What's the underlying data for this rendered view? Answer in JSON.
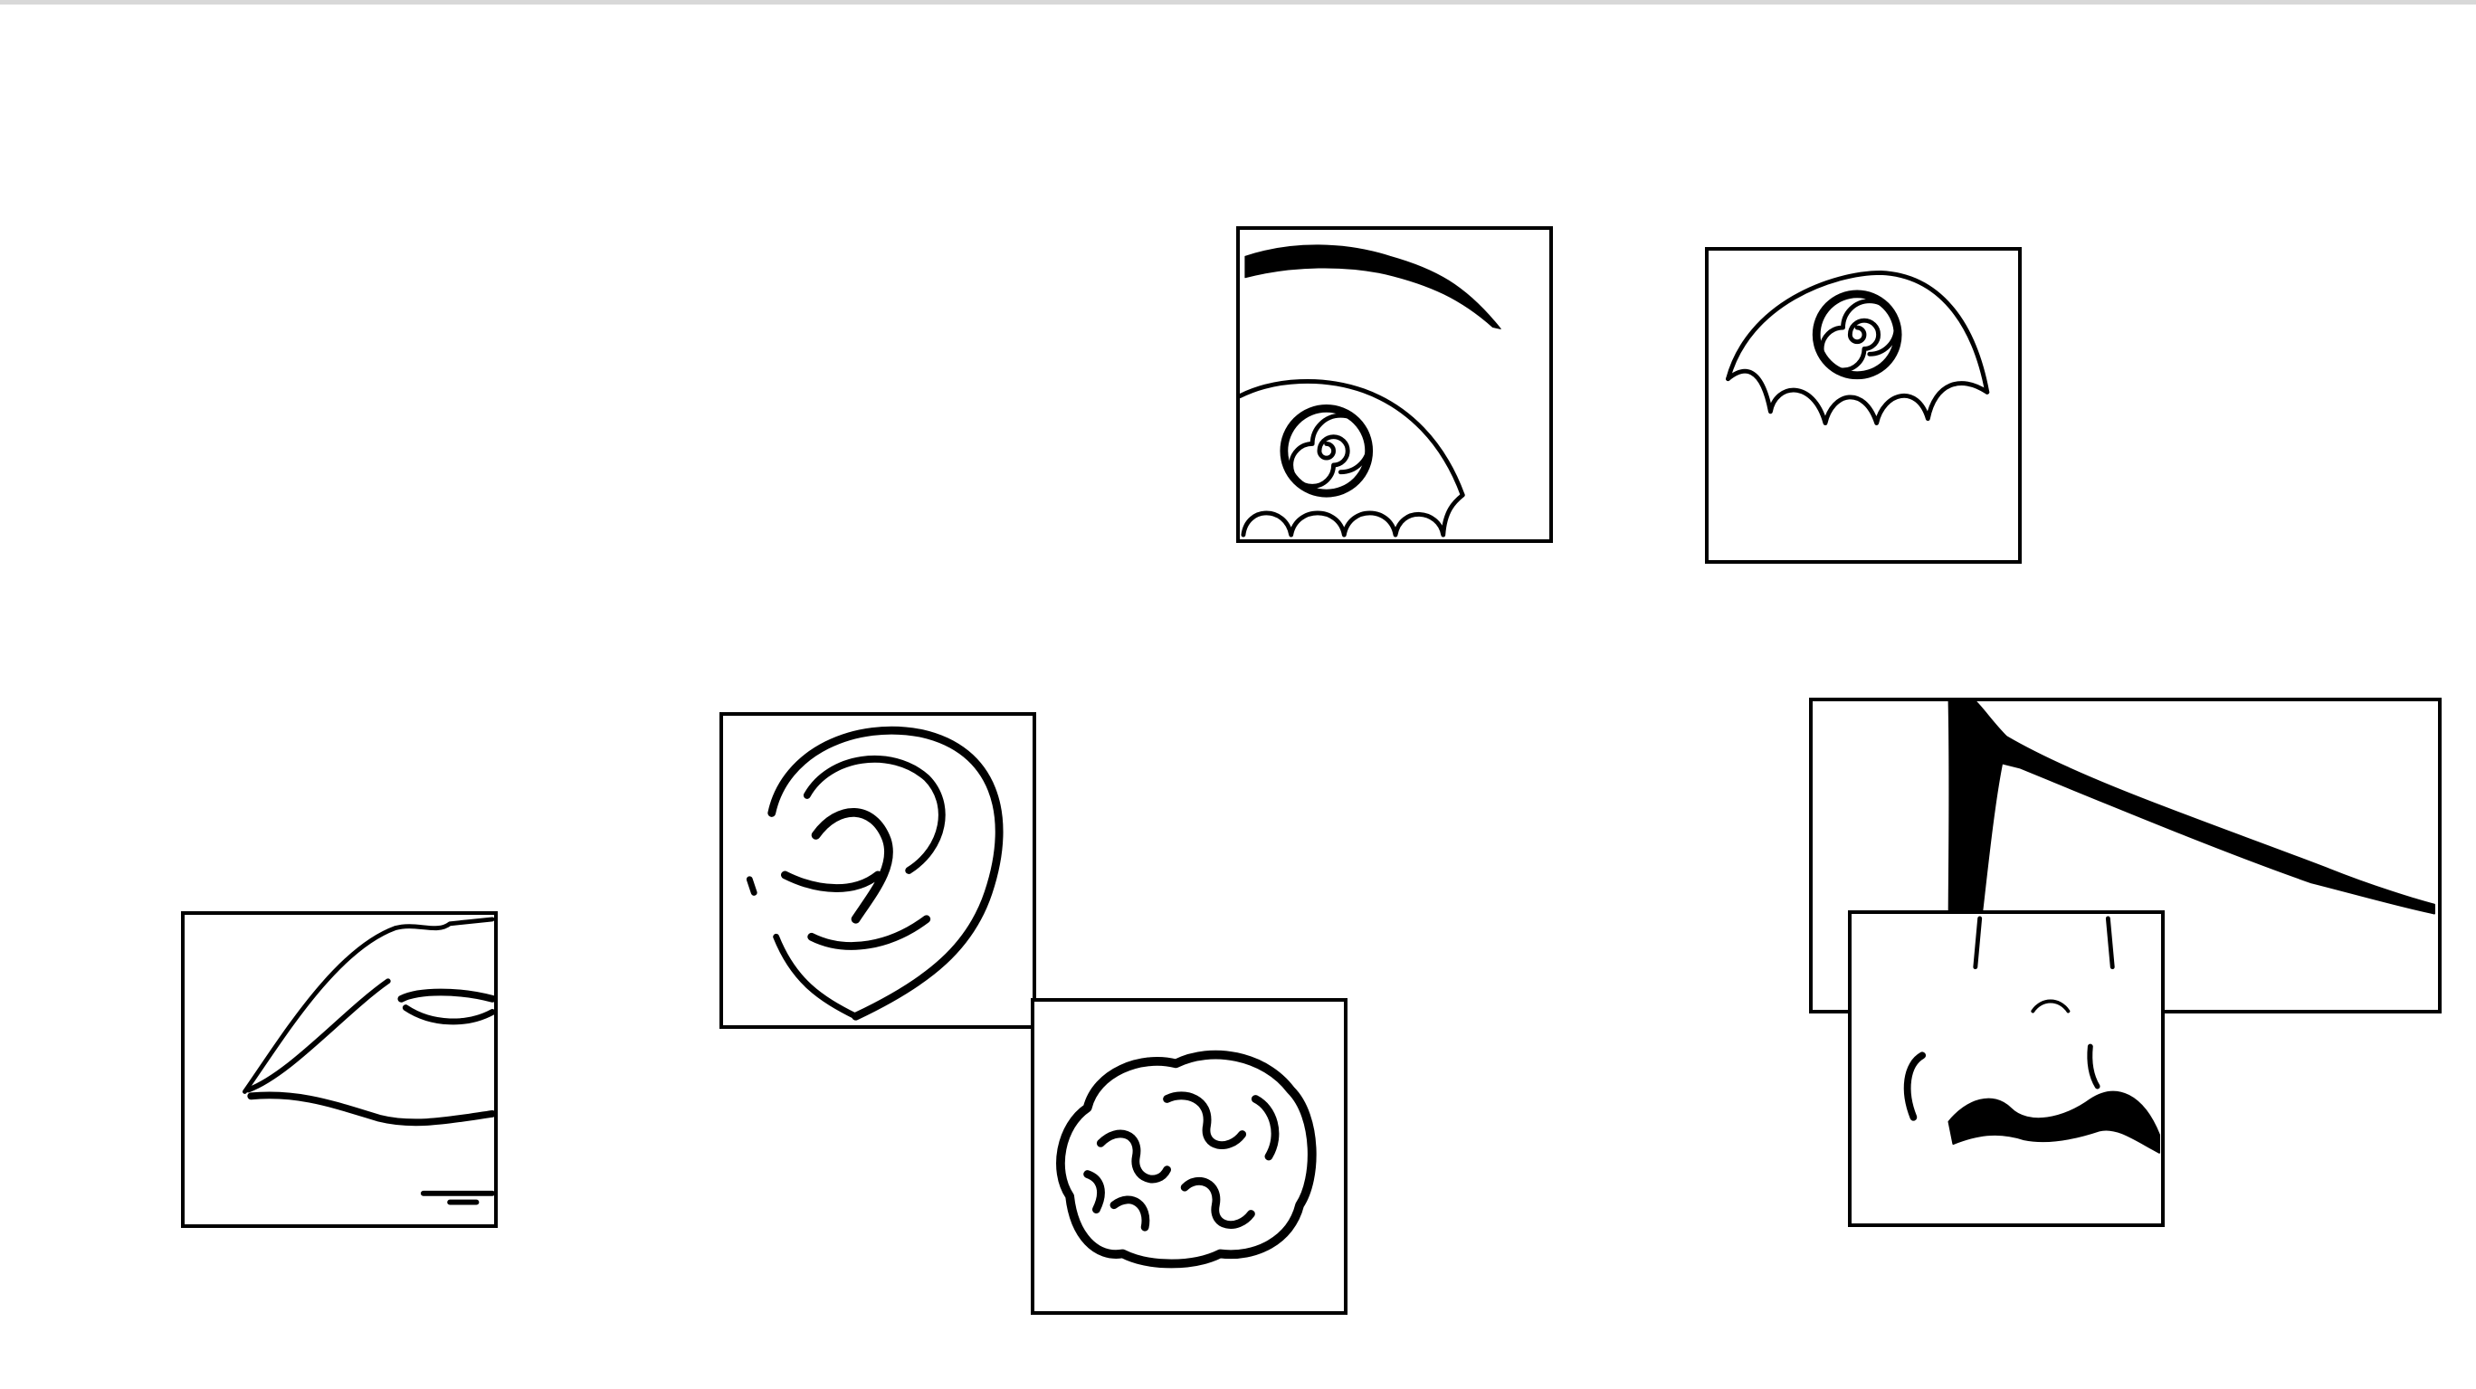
{
  "canvas": {
    "background": "#ffffff",
    "border_color": "#000000",
    "ink_color": "#000000"
  },
  "pieces": [
    {
      "name": "eye-with-eyebrow-piece",
      "depicts": "eye-with-eyebrow-icon"
    },
    {
      "name": "eye-piece",
      "depicts": "eye-icon"
    },
    {
      "name": "ear-piece",
      "depicts": "ear-icon"
    },
    {
      "name": "brain-piece",
      "depicts": "brain-icon"
    },
    {
      "name": "lips-piece",
      "depicts": "lips-icon"
    },
    {
      "name": "cheek-outline-piece",
      "depicts": "cheek-outline-icon"
    },
    {
      "name": "nose-piece",
      "depicts": "nose-icon"
    }
  ]
}
